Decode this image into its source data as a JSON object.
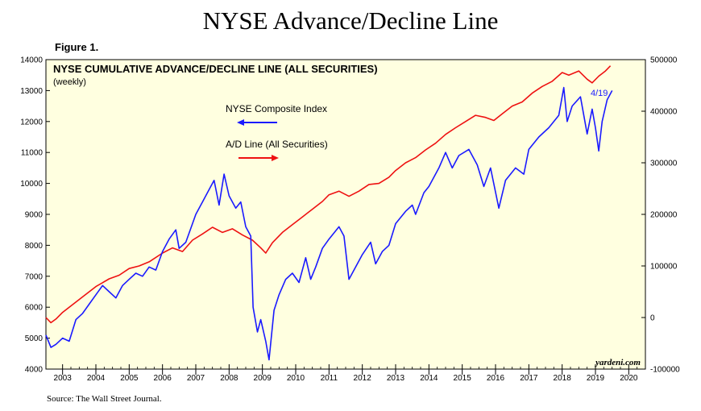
{
  "title": "NYSE Advance/Decline Line",
  "figure_label": "Figure 1.",
  "source": "Source: The Wall Street Journal.",
  "brand": "yardeni.com",
  "chart_data": {
    "type": "line",
    "title": "NYSE CUMULATIVE ADVANCE/DECLINE LINE (ALL SECURITIES)",
    "subtitle": "(weekly)",
    "x_tick_labels": [
      "2003",
      "2004",
      "2005",
      "2006",
      "2007",
      "2008",
      "2009",
      "2010",
      "2011",
      "2012",
      "2013",
      "2014",
      "2015",
      "2016",
      "2017",
      "2018",
      "2019",
      "2020"
    ],
    "xlim": [
      2002.5,
      2020.5
    ],
    "left_axis": {
      "ylim": [
        4000,
        14000
      ],
      "ticks": [
        4000,
        5000,
        6000,
        7000,
        8000,
        9000,
        10000,
        11000,
        12000,
        13000,
        14000
      ]
    },
    "right_axis": {
      "ylim": [
        -100000,
        500000
      ],
      "ticks": [
        -100000,
        0,
        100000,
        200000,
        300000,
        400000,
        500000
      ]
    },
    "end_label": "4/19",
    "grid": false,
    "background": "#ffffe0",
    "series": [
      {
        "name": "NYSE Composite Index",
        "axis": "left",
        "color": "#1a1aff",
        "points": [
          [
            2002.5,
            5100
          ],
          [
            2002.65,
            4700
          ],
          [
            2002.8,
            4800
          ],
          [
            2003.0,
            5000
          ],
          [
            2003.2,
            4900
          ],
          [
            2003.4,
            5600
          ],
          [
            2003.6,
            5800
          ],
          [
            2003.8,
            6100
          ],
          [
            2004.0,
            6400
          ],
          [
            2004.2,
            6700
          ],
          [
            2004.4,
            6500
          ],
          [
            2004.6,
            6300
          ],
          [
            2004.8,
            6700
          ],
          [
            2005.0,
            6900
          ],
          [
            2005.2,
            7100
          ],
          [
            2005.4,
            7000
          ],
          [
            2005.6,
            7300
          ],
          [
            2005.8,
            7200
          ],
          [
            2006.0,
            7800
          ],
          [
            2006.2,
            8200
          ],
          [
            2006.4,
            8500
          ],
          [
            2006.5,
            7900
          ],
          [
            2006.7,
            8100
          ],
          [
            2006.9,
            8700
          ],
          [
            2007.0,
            9000
          ],
          [
            2007.2,
            9400
          ],
          [
            2007.4,
            9800
          ],
          [
            2007.55,
            10100
          ],
          [
            2007.7,
            9300
          ],
          [
            2007.85,
            10300
          ],
          [
            2008.0,
            9600
          ],
          [
            2008.2,
            9200
          ],
          [
            2008.35,
            9400
          ],
          [
            2008.5,
            8600
          ],
          [
            2008.65,
            8300
          ],
          [
            2008.72,
            6000
          ],
          [
            2008.85,
            5200
          ],
          [
            2008.95,
            5600
          ],
          [
            2009.1,
            4900
          ],
          [
            2009.2,
            4300
          ],
          [
            2009.35,
            5900
          ],
          [
            2009.5,
            6400
          ],
          [
            2009.7,
            6900
          ],
          [
            2009.9,
            7100
          ],
          [
            2010.1,
            6800
          ],
          [
            2010.3,
            7600
          ],
          [
            2010.45,
            6900
          ],
          [
            2010.6,
            7300
          ],
          [
            2010.8,
            7900
          ],
          [
            2011.0,
            8200
          ],
          [
            2011.3,
            8600
          ],
          [
            2011.45,
            8300
          ],
          [
            2011.6,
            6900
          ],
          [
            2011.8,
            7300
          ],
          [
            2012.0,
            7700
          ],
          [
            2012.25,
            8100
          ],
          [
            2012.4,
            7400
          ],
          [
            2012.6,
            7800
          ],
          [
            2012.8,
            8000
          ],
          [
            2013.0,
            8700
          ],
          [
            2013.3,
            9100
          ],
          [
            2013.5,
            9300
          ],
          [
            2013.6,
            9000
          ],
          [
            2013.85,
            9700
          ],
          [
            2014.0,
            9900
          ],
          [
            2014.3,
            10500
          ],
          [
            2014.5,
            11000
          ],
          [
            2014.7,
            10500
          ],
          [
            2014.9,
            10900
          ],
          [
            2015.2,
            11100
          ],
          [
            2015.45,
            10600
          ],
          [
            2015.65,
            9900
          ],
          [
            2015.85,
            10500
          ],
          [
            2016.1,
            9200
          ],
          [
            2016.3,
            10100
          ],
          [
            2016.6,
            10500
          ],
          [
            2016.85,
            10300
          ],
          [
            2017.0,
            11100
          ],
          [
            2017.3,
            11500
          ],
          [
            2017.6,
            11800
          ],
          [
            2017.9,
            12200
          ],
          [
            2018.05,
            13100
          ],
          [
            2018.15,
            12000
          ],
          [
            2018.3,
            12500
          ],
          [
            2018.55,
            12800
          ],
          [
            2018.75,
            11600
          ],
          [
            2018.9,
            12400
          ],
          [
            2019.0,
            11800
          ],
          [
            2019.1,
            11050
          ],
          [
            2019.2,
            12000
          ],
          [
            2019.35,
            12700
          ],
          [
            2019.5,
            13000
          ]
        ]
      },
      {
        "name": "A/D Line (All Securities)",
        "axis": "right",
        "color": "#ee1111",
        "points": [
          [
            2002.5,
            0
          ],
          [
            2002.65,
            -10000
          ],
          [
            2002.8,
            -3000
          ],
          [
            2003.0,
            10000
          ],
          [
            2003.3,
            25000
          ],
          [
            2003.6,
            40000
          ],
          [
            2004.0,
            60000
          ],
          [
            2004.4,
            75000
          ],
          [
            2004.7,
            82000
          ],
          [
            2005.0,
            95000
          ],
          [
            2005.3,
            100000
          ],
          [
            2005.6,
            108000
          ],
          [
            2006.0,
            125000
          ],
          [
            2006.3,
            135000
          ],
          [
            2006.6,
            128000
          ],
          [
            2006.9,
            150000
          ],
          [
            2007.2,
            162000
          ],
          [
            2007.5,
            175000
          ],
          [
            2007.8,
            165000
          ],
          [
            2008.1,
            172000
          ],
          [
            2008.4,
            160000
          ],
          [
            2008.7,
            150000
          ],
          [
            2008.95,
            135000
          ],
          [
            2009.1,
            125000
          ],
          [
            2009.3,
            145000
          ],
          [
            2009.6,
            165000
          ],
          [
            2009.9,
            180000
          ],
          [
            2010.2,
            195000
          ],
          [
            2010.5,
            210000
          ],
          [
            2010.8,
            225000
          ],
          [
            2011.0,
            238000
          ],
          [
            2011.3,
            245000
          ],
          [
            2011.6,
            235000
          ],
          [
            2011.9,
            245000
          ],
          [
            2012.2,
            258000
          ],
          [
            2012.5,
            260000
          ],
          [
            2012.8,
            272000
          ],
          [
            2013.0,
            285000
          ],
          [
            2013.3,
            300000
          ],
          [
            2013.6,
            310000
          ],
          [
            2013.9,
            325000
          ],
          [
            2014.2,
            338000
          ],
          [
            2014.5,
            355000
          ],
          [
            2014.8,
            368000
          ],
          [
            2015.1,
            380000
          ],
          [
            2015.4,
            392000
          ],
          [
            2015.7,
            388000
          ],
          [
            2015.95,
            382000
          ],
          [
            2016.2,
            395000
          ],
          [
            2016.5,
            410000
          ],
          [
            2016.8,
            418000
          ],
          [
            2017.1,
            435000
          ],
          [
            2017.4,
            448000
          ],
          [
            2017.7,
            458000
          ],
          [
            2018.0,
            475000
          ],
          [
            2018.2,
            470000
          ],
          [
            2018.5,
            478000
          ],
          [
            2018.75,
            462000
          ],
          [
            2018.9,
            455000
          ],
          [
            2019.1,
            468000
          ],
          [
            2019.3,
            478000
          ],
          [
            2019.45,
            488000
          ]
        ]
      }
    ]
  }
}
